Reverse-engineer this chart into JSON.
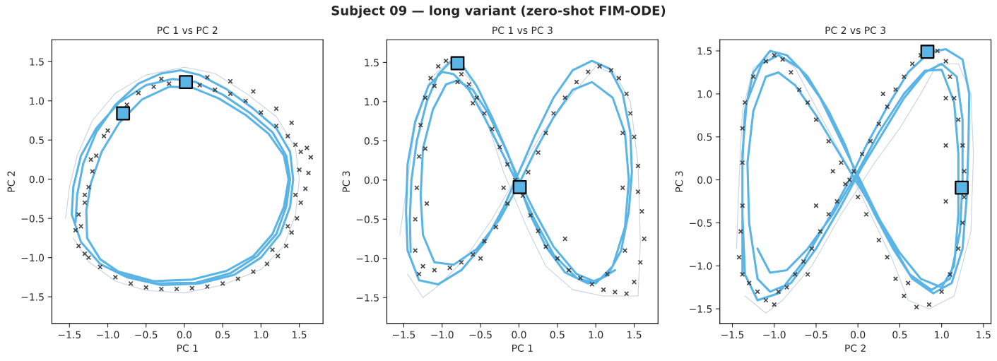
{
  "chart_data": [
    {
      "type": "line",
      "title": "PC 1 vs PC 2",
      "xlabel": "PC 1",
      "ylabel": "PC 2",
      "annotations": [
        "Subject 09 — long variant (zero-shot FIM-ODE)"
      ],
      "xlim": [
        -1.73,
        1.81
      ],
      "ylim": [
        -1.84,
        1.78
      ],
      "xticks": [
        {
          "value": -1.5,
          "label": "−1.5"
        },
        {
          "value": -1.0,
          "label": "−1.0"
        },
        {
          "value": -0.5,
          "label": "−0.5"
        },
        {
          "value": 0.0,
          "label": "0.0"
        },
        {
          "value": 0.5,
          "label": "0.5"
        },
        {
          "value": 1.0,
          "label": "1.0"
        },
        {
          "value": 1.5,
          "label": "1.5"
        }
      ],
      "yticks": [
        {
          "value": -1.5,
          "label": "−1.5"
        },
        {
          "value": -1.0,
          "label": "−1.0"
        },
        {
          "value": -0.5,
          "label": "−0.5"
        },
        {
          "value": 0.0,
          "label": "0.0"
        },
        {
          "value": 0.5,
          "label": "0.5"
        },
        {
          "value": 1.0,
          "label": "1.0"
        },
        {
          "value": 1.5,
          "label": "1.5"
        }
      ],
      "grid": false,
      "series": [
        {
          "type": "line",
          "color": "#c8d2e0",
          "marker": "none",
          "x": [
            -1.55,
            -1.5,
            -1.4,
            -1.2,
            -0.9,
            -0.5,
            0.0,
            0.4,
            0.8,
            1.2,
            1.45,
            1.5,
            1.45,
            1.3,
            1.0,
            0.5,
            0.0,
            -0.5,
            -0.9,
            -1.25,
            -1.45
          ],
          "values": [
            -0.5,
            -0.1,
            0.3,
            0.75,
            1.1,
            1.33,
            1.43,
            1.35,
            1.1,
            0.8,
            0.4,
            0.0,
            -0.45,
            -0.85,
            -1.15,
            -1.35,
            -1.45,
            -1.42,
            -1.3,
            -1.05,
            -0.75
          ]
        },
        {
          "type": "line",
          "color": "#5ab4e5",
          "marker": "none",
          "x": [
            -1.42,
            -1.4,
            -1.32,
            -1.15,
            -0.9,
            -0.6,
            -0.3,
            -0.05,
            0.2,
            0.55,
            0.9,
            1.2,
            1.38,
            1.42,
            1.38,
            1.25,
            1.0,
            0.65,
            0.2,
            -0.3,
            -0.75,
            -1.1,
            -1.35,
            -1.47,
            -1.45,
            -1.35,
            -1.15,
            -0.85,
            -0.5,
            -0.15,
            0.15,
            0.5,
            0.85,
            1.15,
            1.33,
            1.38,
            1.33,
            1.2,
            0.95,
            0.6,
            0.15,
            -0.35,
            -0.8,
            -1.1,
            -1.27,
            -1.28,
            -1.22,
            -1.08,
            -0.85,
            -0.55,
            -0.2,
            0.1,
            0.45,
            0.8,
            1.1,
            1.3,
            1.36,
            1.3,
            1.15,
            0.9,
            0.55,
            0.1,
            -0.4,
            -0.85
          ],
          "values": [
            -0.55,
            -0.2,
            0.2,
            0.6,
            0.95,
            1.22,
            1.35,
            1.39,
            1.33,
            1.15,
            0.9,
            0.65,
            0.35,
            0.0,
            -0.35,
            -0.7,
            -1.0,
            -1.22,
            -1.33,
            -1.35,
            -1.25,
            -1.08,
            -0.8,
            -0.45,
            -0.1,
            0.3,
            0.65,
            0.98,
            1.2,
            1.28,
            1.24,
            1.08,
            0.85,
            0.6,
            0.3,
            0.0,
            -0.35,
            -0.7,
            -0.98,
            -1.2,
            -1.32,
            -1.33,
            -1.22,
            -1.02,
            -0.75,
            -0.4,
            -0.05,
            0.35,
            0.72,
            1.02,
            1.18,
            1.17,
            1.03,
            0.82,
            0.58,
            0.3,
            0.0,
            -0.35,
            -0.7,
            -0.98,
            -1.17,
            -1.28,
            -1.3,
            -1.18
          ]
        },
        {
          "type": "scatter",
          "color": "#333333",
          "marker": "cross",
          "x": [
            -0.6,
            -0.4,
            -0.2,
            0.2,
            0.4,
            0.6,
            0.8,
            1.0,
            1.2,
            1.35,
            1.45,
            1.52,
            1.6,
            1.65,
            1.62,
            1.58,
            1.52,
            1.47,
            1.4,
            1.33,
            1.22,
            1.08,
            0.9,
            0.7,
            0.5,
            0.3,
            0.1,
            -0.1,
            -0.3,
            -0.5,
            -0.7,
            -0.9,
            -1.1,
            -1.25,
            -1.38,
            -1.42,
            -1.38,
            -1.3,
            -1.25,
            -1.2,
            -1.15,
            -1.05,
            -0.9,
            -0.75,
            0.3,
            0.6,
            0.9,
            1.2,
            1.4,
            1.5,
            1.45,
            1.35,
            1.15,
            -1.3,
            -1.35,
            -1.3,
            -1.22,
            -1.0,
            -0.3
          ],
          "values": [
            1.1,
            1.18,
            1.22,
            1.2,
            1.14,
            1.09,
            1.0,
            0.85,
            0.68,
            0.55,
            0.44,
            0.35,
            0.4,
            0.28,
            0.08,
            -0.12,
            -0.3,
            -0.5,
            -0.68,
            -0.85,
            -0.98,
            -1.08,
            -1.18,
            -1.27,
            -1.33,
            -1.37,
            -1.39,
            -1.4,
            -1.4,
            -1.38,
            -1.33,
            -1.25,
            -1.12,
            -1.0,
            -0.85,
            -0.65,
            -0.45,
            -0.3,
            -0.1,
            0.1,
            0.3,
            0.55,
            null,
            0.95,
            1.3,
            1.25,
            1.12,
            0.9,
            0.72,
            0.12,
            -0.2,
            -0.6,
            -0.9,
            -0.95,
            -0.6,
            -0.2,
            0.25,
            0.62,
            1.28
          ]
        },
        {
          "type": "scatter",
          "color": "#5ab4e5",
          "marker": "square",
          "x": [
            -0.8,
            0.02
          ],
          "values": [
            0.84,
            1.24
          ]
        }
      ]
    },
    {
      "type": "line",
      "title": "PC 1 vs PC 3",
      "xlabel": "PC 1",
      "ylabel": "PC 3",
      "xlim": [
        -1.72,
        1.81
      ],
      "ylim": [
        -1.83,
        1.79
      ],
      "xticks": [
        {
          "value": -1.5,
          "label": "−1.5"
        },
        {
          "value": -1.0,
          "label": "−1.0"
        },
        {
          "value": -0.5,
          "label": "−0.5"
        },
        {
          "value": 0.0,
          "label": "0.0"
        },
        {
          "value": 0.5,
          "label": "0.5"
        },
        {
          "value": 1.0,
          "label": "1.0"
        },
        {
          "value": 1.5,
          "label": "1.5"
        }
      ],
      "yticks": [
        {
          "value": -1.5,
          "label": "−1.5"
        },
        {
          "value": -1.0,
          "label": "−1.0"
        },
        {
          "value": -0.5,
          "label": "−0.5"
        },
        {
          "value": 0.0,
          "label": "0.0"
        },
        {
          "value": 0.5,
          "label": "0.5"
        },
        {
          "value": 1.0,
          "label": "1.0"
        },
        {
          "value": 1.5,
          "label": "1.5"
        }
      ],
      "grid": false,
      "series": [
        {
          "type": "line",
          "color": "#c8d2e0",
          "marker": "none",
          "x": [
            -1.55,
            -1.45,
            -1.35,
            -1.15,
            -0.9,
            -0.65,
            -0.4,
            -0.2,
            0.1,
            0.35,
            0.7,
            1.1,
            1.55,
            1.58,
            1.55,
            1.45,
            1.25,
            1.0,
            0.7,
            0.3,
            0.0,
            -0.35,
            -0.7,
            -1.05,
            -1.25,
            -1.45
          ],
          "values": [
            -0.7,
            0.0,
            0.7,
            1.3,
            1.52,
            1.3,
            0.7,
            0.1,
            -0.6,
            -1.1,
            -1.4,
            -1.48,
            -1.48,
            -0.8,
            0.2,
            1.0,
            1.35,
            1.45,
            1.1,
            0.6,
            0.1,
            -0.5,
            -1.0,
            -1.35,
            -1.5,
            -1.2
          ]
        },
        {
          "type": "line",
          "color": "#5ab4e5",
          "marker": "none",
          "x": [
            -1.41,
            -1.42,
            -1.4,
            -1.33,
            -1.2,
            -1.05,
            -0.9,
            -0.75,
            -0.55,
            -0.35,
            -0.15,
            0.0,
            0.15,
            0.35,
            0.6,
            0.9,
            1.15,
            1.33,
            1.43,
            1.47,
            1.45,
            1.35,
            1.18,
            0.95,
            0.7,
            0.45,
            0.2,
            0.0,
            -0.2,
            -0.45,
            -0.75,
            -1.05,
            -1.3,
            -1.45,
            -1.47,
            -1.45,
            -1.35,
            -1.18,
            -1.0,
            -0.85,
            -0.65,
            -0.45,
            -0.22,
            0.0,
            0.2,
            0.45,
            0.75,
            1.0,
            1.22,
            1.38,
            1.43,
            1.38,
            1.22,
            0.95,
            0.7,
            0.45,
            0.2,
            0.0,
            -0.25,
            -0.55,
            -0.85,
            -1.1,
            -1.25,
            -1.28,
            -1.25,
            -1.12,
            -0.95,
            -0.8,
            -0.6,
            -0.4,
            -0.2,
            0.0,
            0.2,
            0.45,
            0.75,
            1.0,
            1.25
          ],
          "values": [
            -0.92,
            -0.5,
            0.0,
            0.5,
            1.0,
            1.35,
            1.5,
            1.48,
            1.2,
            0.8,
            0.35,
            -0.05,
            -0.45,
            -0.85,
            -1.18,
            -1.32,
            -1.22,
            -0.9,
            -0.4,
            0.1,
            0.6,
            1.1,
            1.42,
            1.52,
            1.4,
            1.05,
            0.55,
            0.1,
            -0.35,
            -0.8,
            -1.15,
            -1.33,
            -1.28,
            -0.9,
            -0.4,
            0.2,
            0.75,
            1.2,
            1.38,
            1.35,
            1.15,
            0.8,
            0.35,
            -0.08,
            -0.5,
            -0.95,
            -1.25,
            -1.32,
            -1.1,
            -0.6,
            0.0,
            0.6,
            1.05,
            1.25,
            1.15,
            0.8,
            0.35,
            -0.05,
            -0.5,
            -0.88,
            -1.08,
            -1.05,
            -0.7,
            -0.2,
            0.4,
            0.9,
            1.22,
            1.27,
            1.15,
            0.85,
            0.45,
            0.0,
            -0.4,
            -0.85,
            -1.2,
            -1.3,
            -1.15
          ]
        },
        {
          "type": "scatter",
          "color": "#333333",
          "marker": "cross",
          "x": [
            -1.3,
            -1.35,
            -1.35,
            -1.33,
            -1.3,
            -1.28,
            -1.22,
            -1.15,
            -1.05,
            -0.95,
            -0.75,
            -0.65,
            -0.55,
            -0.45,
            -0.35,
            -0.25,
            -0.15,
            -0.05,
            0.05,
            0.15,
            0.25,
            0.35,
            0.5,
            0.65,
            0.8,
            0.95,
            1.1,
            1.25,
            1.4,
            1.5,
            1.58,
            1.63,
            1.6,
            1.55,
            1.55,
            1.5,
            1.45,
            1.4,
            1.3,
            1.2,
            1.05,
            0.9,
            0.75,
            0.6,
            0.45,
            0.35,
            0.25,
            0.12,
            -0.15,
            -0.3,
            -0.45,
            -0.6,
            -0.75,
            -0.9,
            -1.1,
            -1.25,
            -1.2,
            -1.22,
            -1.1,
            -0.8,
            -0.6,
            1.35,
            1.35,
            1.38,
            1.15,
            0.6,
            -0.2,
            -0.5
          ],
          "values": [
            -1.2,
            -0.9,
            -0.5,
            -0.1,
            0.3,
            0.7,
            1.05,
            1.3,
            1.45,
            1.52,
            1.35,
            1.22,
            1.05,
            0.85,
            0.65,
            0.42,
            0.2,
            0.0,
            -0.2,
            -0.45,
            -0.65,
            -0.85,
            -1.0,
            -1.15,
            -1.25,
            -1.33,
            -1.4,
            -1.43,
            -1.45,
            -1.3,
            -1.05,
            -0.75,
            -0.4,
            -0.15,
            0.18,
            0.55,
            0.85,
            1.1,
            1.3,
            1.4,
            1.45,
            1.38,
            1.25,
            1.05,
            0.85,
            0.6,
            0.35,
            0.1,
            -0.3,
            -0.6,
            -0.78,
            -0.95,
            -1.05,
            -1.12,
            -1.15,
            -1.1,
            -0.3,
            0.4,
            1.2,
            1.25,
            0.98,
            -0.1,
            0.6,
            -0.9,
            -1.2,
            -0.75,
            -0.1,
            -1.0
          ]
        },
        {
          "type": "scatter",
          "color": "#5ab4e5",
          "marker": "square",
          "x": [
            -0.8,
            0.01
          ],
          "values": [
            1.49,
            -0.09
          ]
        }
      ]
    },
    {
      "type": "line",
      "title": "PC 2 vs PC 3",
      "xlabel": "PC 2",
      "ylabel": "PC 3",
      "xlim": [
        -1.65,
        1.59
      ],
      "ylim": [
        -1.67,
        1.63
      ],
      "xticks": [
        {
          "value": -1.5,
          "label": "−1.5"
        },
        {
          "value": -1.0,
          "label": "−1.0"
        },
        {
          "value": -0.5,
          "label": "−0.5"
        },
        {
          "value": 0.0,
          "label": "0.0"
        },
        {
          "value": 0.5,
          "label": "0.5"
        },
        {
          "value": 1.0,
          "label": "1.0"
        },
        {
          "value": 1.5,
          "label": "1.5"
        }
      ],
      "yticks": [
        {
          "value": -1.5,
          "label": "−1.5"
        },
        {
          "value": -1.0,
          "label": "−1.0"
        },
        {
          "value": -0.5,
          "label": "−0.5"
        },
        {
          "value": 0.0,
          "label": "0.0"
        },
        {
          "value": 0.5,
          "label": "0.5"
        },
        {
          "value": 1.0,
          "label": "1.0"
        },
        {
          "value": 1.5,
          "label": "1.5"
        }
      ],
      "grid": false,
      "series": [
        {
          "type": "line",
          "color": "#c8d2e0",
          "marker": "none",
          "x": [
            -1.45,
            -1.42,
            -1.38,
            -1.25,
            -1.0,
            -0.75,
            -0.45,
            -0.2,
            0.1,
            0.4,
            0.6,
            0.85,
            1.15,
            1.35,
            1.38,
            1.35,
            1.2,
            0.95,
            0.75,
            0.5,
            0.2,
            -0.2,
            -0.55,
            -0.9,
            -1.1,
            -1.35
          ],
          "values": [
            -0.8,
            0.0,
            0.8,
            1.3,
            1.48,
            1.3,
            0.75,
            0.3,
            -0.3,
            -0.9,
            -1.4,
            -1.5,
            -1.35,
            -0.6,
            0.3,
            1.0,
            1.35,
            1.35,
            1.0,
            0.6,
            0.2,
            -0.4,
            -1.0,
            -1.4,
            -1.55,
            -1.35
          ]
        },
        {
          "type": "line",
          "color": "#5ab4e5",
          "marker": "none",
          "x": [
            -1.38,
            -1.38,
            -1.38,
            -1.35,
            -1.25,
            -1.05,
            -0.85,
            -0.6,
            -0.35,
            -0.15,
            0.0,
            0.2,
            0.42,
            0.65,
            0.9,
            1.12,
            1.25,
            1.3,
            1.32,
            1.33,
            1.25,
            1.05,
            0.85,
            0.6,
            0.35,
            0.1,
            -0.1,
            -0.35,
            -0.65,
            -0.95,
            -1.2,
            -1.35,
            -1.38,
            -1.38,
            -1.33,
            -1.15,
            -0.95,
            -0.7,
            -0.45,
            -0.25,
            -0.05,
            0.15,
            0.38,
            0.62,
            0.88,
            1.1,
            1.22,
            1.25,
            1.25,
            1.18,
            1.0,
            0.8,
            0.55,
            0.3,
            0.05,
            -0.2,
            -0.5,
            -0.8,
            -1.05,
            -1.2,
            -1.3,
            -1.32,
            -1.25,
            -1.1,
            -0.95,
            -0.75,
            -0.5,
            -0.25,
            0.0,
            0.25,
            0.5,
            0.75,
            1.0,
            1.15,
            1.2,
            1.2,
            1.15,
            1.0,
            0.8,
            0.55,
            0.25,
            0.0,
            -0.3,
            -0.6,
            -0.85,
            -1.05,
            -1.2
          ],
          "values": [
            -1.1,
            -0.5,
            0.2,
            0.8,
            1.25,
            1.5,
            1.45,
            1.2,
            0.8,
            0.4,
            0.0,
            -0.4,
            -0.8,
            -1.15,
            -1.32,
            -1.2,
            -0.8,
            -0.2,
            0.4,
            1.0,
            1.4,
            1.52,
            1.48,
            1.25,
            0.85,
            0.4,
            0.0,
            -0.45,
            -0.95,
            -1.32,
            -1.4,
            -1.1,
            -0.4,
            0.3,
            0.9,
            1.35,
            1.45,
            1.3,
            0.95,
            0.55,
            0.15,
            -0.25,
            -0.7,
            -1.1,
            -1.28,
            -1.15,
            -0.6,
            0.0,
            0.7,
            1.2,
            1.35,
            1.25,
            0.95,
            0.55,
            0.15,
            -0.3,
            -0.8,
            -1.2,
            -1.3,
            -1.15,
            -0.5,
            0.2,
            0.8,
            1.2,
            1.25,
            1.1,
            0.75,
            0.35,
            -0.05,
            -0.45,
            -0.85,
            -1.15,
            -1.25,
            -1.0,
            -0.4,
            0.3,
            0.9,
            1.28,
            1.27,
            1.0,
            0.55,
            0.1,
            -0.4,
            -0.8,
            -1.05,
            -1.08,
            -0.8
          ]
        },
        {
          "type": "scatter",
          "color": "#333333",
          "marker": "cross",
          "x": [
            -1.38,
            -1.4,
            -1.42,
            -1.38,
            -1.3,
            -1.2,
            -1.1,
            -1.0,
            -0.95,
            -0.85,
            -0.75,
            -0.65,
            -0.55,
            -0.45,
            -0.35,
            -0.25,
            -0.15,
            -0.05,
            0.05,
            0.15,
            0.25,
            0.35,
            0.45,
            0.55,
            0.65,
            0.75,
            0.95,
            1.05,
            1.1,
            1.15,
            1.2,
            1.25,
            1.27,
            1.27,
            1.25,
            1.2,
            1.1,
            1.0,
            0.85,
            0.7,
            0.55,
            0.45,
            0.35,
            0.25,
            0.1,
            0.0,
            -0.1,
            -0.2,
            -0.35,
            -0.5,
            -0.6,
            -0.7,
            -0.8,
            -0.9,
            -1.0,
            -1.1,
            -1.25,
            -1.35,
            -1.38,
            -1.38,
            1.05,
            1.05,
            1.05,
            -0.5,
            -0.6,
            -0.3,
            0.3,
            0.6
          ],
          "values": [
            -0.3,
            -0.6,
            -0.9,
            -1.1,
            -1.2,
            -1.3,
            -1.4,
            -1.45,
            -1.3,
            -1.25,
            -1.1,
            -0.95,
            -0.8,
            -0.6,
            -0.4,
            -0.25,
            -0.05,
            0.1,
            0.3,
            0.45,
            0.65,
            0.85,
            1.05,
            1.2,
            1.35,
            1.45,
            1.5,
            1.38,
            1.2,
            0.95,
            0.7,
            0.4,
            0.1,
            -0.2,
            -0.5,
            -0.8,
            -1.1,
            -1.3,
            -1.45,
            -1.48,
            -1.35,
            -1.15,
            -0.9,
            -0.7,
            -0.4,
            -0.2,
            0.0,
            0.2,
            0.45,
            0.7,
            0.9,
            1.05,
            1.25,
            1.4,
            1.45,
            1.38,
            1.2,
            0.9,
            0.6,
            0.2,
            -0.25,
            0.4,
            0.95,
            -0.3,
            -1.1,
            0.1,
            1.0,
            -1.2
          ]
        },
        {
          "type": "scatter",
          "color": "#5ab4e5",
          "marker": "square",
          "x": [
            0.83,
            1.24
          ],
          "values": [
            1.49,
            -0.09
          ]
        }
      ]
    }
  ]
}
